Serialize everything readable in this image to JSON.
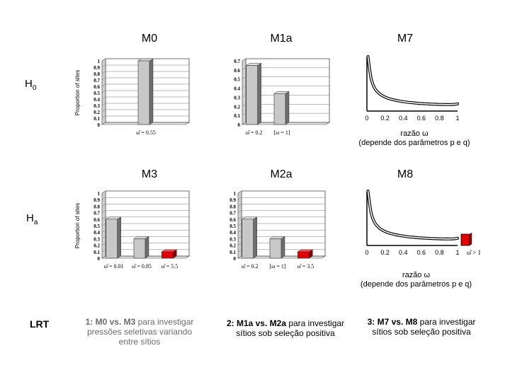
{
  "rows": {
    "h0": {
      "main": "H",
      "sub": "0"
    },
    "ha": {
      "main": "H",
      "sub": "a"
    },
    "lrt": "LRT"
  },
  "titles": {
    "m0": "M0",
    "m1a": "M1a",
    "m7": "M7",
    "m3": "M3",
    "m2a": "M2a",
    "m8": "M8"
  },
  "colors": {
    "bar": "#c8c8c8",
    "bar_positive": "#e00000",
    "axis": "#000000"
  },
  "chart_data": [
    {
      "id": "m0",
      "type": "bar",
      "title": "M0",
      "ylabel": "Proportion of sites",
      "ylim": [
        0,
        1
      ],
      "yticks": [
        "0",
        "0.1",
        "0.2",
        "0.3",
        "0.4",
        "0.5",
        "0.6",
        "0.7",
        "0.8",
        "0.9",
        "1"
      ],
      "categories": [
        "ω̂ = 0.55"
      ],
      "values": [
        1
      ],
      "positive": [
        false
      ],
      "grid": true
    },
    {
      "id": "m1a",
      "type": "bar",
      "title": "M1a",
      "ylabel": "",
      "ylim": [
        0,
        0.7
      ],
      "yticks": [
        "0",
        "0.1",
        "0.2",
        "0.3",
        "0.4",
        "0.5",
        "0.6",
        "0.7"
      ],
      "categories": [
        "ω̂ = 0.2",
        "[ω = 1]"
      ],
      "values": [
        0.65,
        0.34
      ],
      "positive": [
        false,
        false
      ],
      "grid": true
    },
    {
      "id": "m3",
      "type": "bar",
      "title": "M3",
      "ylabel": "Proportion of sites",
      "ylim": [
        0,
        1
      ],
      "yticks": [
        "0",
        "0.1",
        "0.2",
        "0.3",
        "0.4",
        "0.5",
        "0.6",
        "0.7",
        "0.8",
        "0.9",
        "1"
      ],
      "categories": [
        "ω̂ = 0.01",
        "ω̂ = 0.85",
        "ω̂ = 5.5"
      ],
      "values": [
        0.6,
        0.3,
        0.1
      ],
      "positive": [
        false,
        false,
        true
      ],
      "grid": true
    },
    {
      "id": "m2a",
      "type": "bar",
      "title": "M2a",
      "ylabel": "",
      "ylim": [
        0,
        1
      ],
      "yticks": [
        "0",
        "0.1",
        "0.2",
        "0.3",
        "0.4",
        "0.5",
        "0.6",
        "0.7",
        "0.8",
        "0.9",
        "1"
      ],
      "categories": [
        "ω̂ = 0.2",
        "[ω = 1]",
        "ω̂ = 3.5"
      ],
      "values": [
        0.6,
        0.3,
        0.1
      ],
      "positive": [
        false,
        false,
        true
      ],
      "grid": true
    },
    {
      "id": "m7",
      "type": "line",
      "title": "M7",
      "xlim": [
        0,
        1
      ],
      "xticks": [
        "0",
        "0.2",
        "0.4",
        "0.6",
        "0.8",
        "1"
      ],
      "xlabel": "razão ω",
      "note": "(depende dos parâmetros p e q)"
    },
    {
      "id": "m8",
      "type": "line",
      "title": "M8",
      "xlim": [
        0,
        1
      ],
      "xticks": [
        "0",
        "0.2",
        "0.4",
        "0.6",
        "0.8",
        "1"
      ],
      "extra_tick": "ω̂ > 1",
      "xlabel": "razão ω",
      "note": "(depende dos parâmetros p e q)"
    }
  ],
  "lrt": [
    {
      "bold": "1: M0 vs. M3",
      "rest": " para investigar pressões seletivas variando entre sítios"
    },
    {
      "bold": "2: M1a vs. M2a",
      "rest": " para investigar sítios sob seleção positiva"
    },
    {
      "bold": "3: M7 vs. M8",
      "rest": " para investigar sítios sob seleção positiva"
    }
  ]
}
